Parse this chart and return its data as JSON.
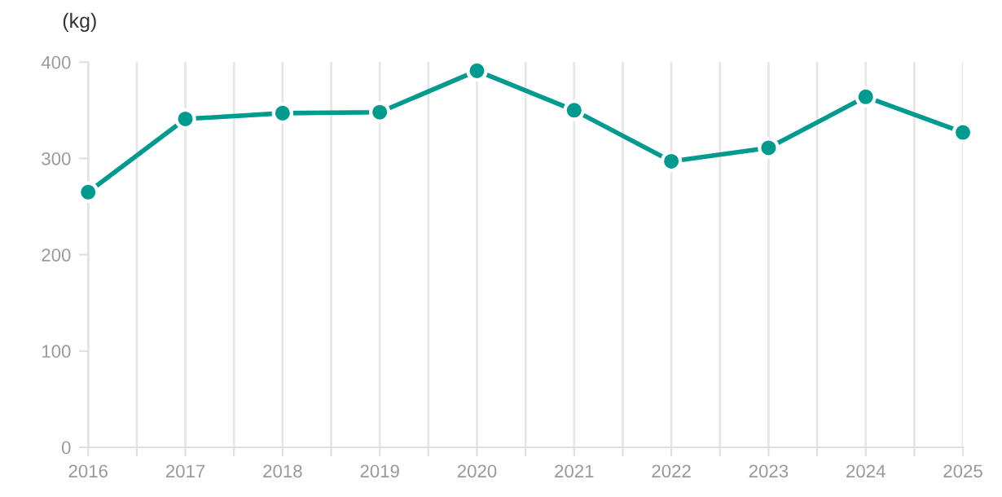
{
  "chart_data": {
    "type": "line",
    "ylabel": "(kg)",
    "x": [
      2016,
      2017,
      2018,
      2019,
      2020,
      2021,
      2022,
      2023,
      2024,
      2025
    ],
    "series": [
      {
        "color": "#009a8e",
        "values": [
          265,
          341,
          347,
          348,
          391,
          350,
          297,
          311,
          364,
          327
        ]
      }
    ],
    "xlim": [
      2016,
      2025
    ],
    "xticks": [
      2016,
      {
        "value": 2016.5,
        "label": null
      },
      2017,
      {
        "value": 2017.5,
        "label": null
      },
      2018,
      {
        "value": 2018.5,
        "label": null
      },
      2019,
      {
        "value": 2019.5,
        "label": null
      },
      2020,
      {
        "value": 2020.5,
        "label": null
      },
      2021,
      {
        "value": 2021.5,
        "label": null
      },
      2022,
      {
        "value": 2022.5,
        "label": null
      },
      2023,
      {
        "value": 2023.5,
        "label": null
      },
      2024,
      {
        "value": 2024.5,
        "label": null
      },
      2025
    ],
    "ylim": [
      0,
      400
    ],
    "yticks": [
      0,
      100,
      200,
      300,
      400
    ],
    "grid": "x",
    "marker": "circle",
    "line_style": "solid",
    "legend": false
  }
}
